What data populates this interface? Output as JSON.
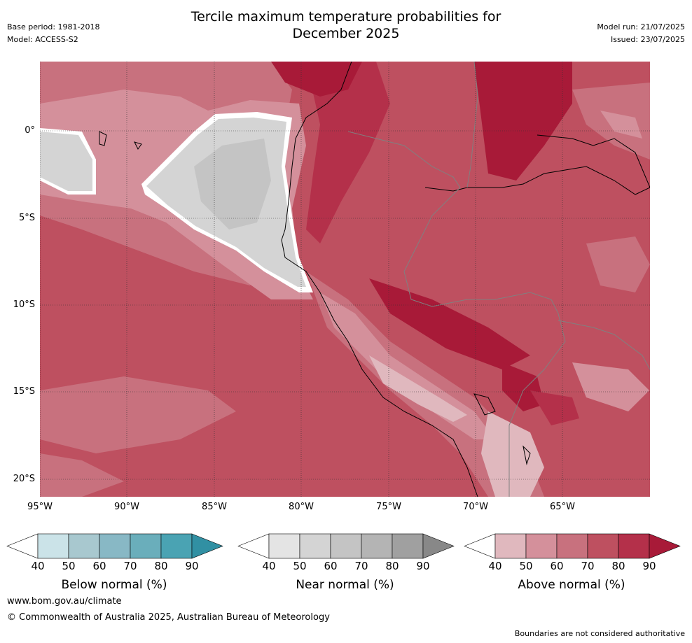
{
  "title": {
    "line1": "Tercile maximum temperature probabilities for",
    "line2": "December 2025"
  },
  "meta_left": {
    "base_period": "Base period: 1981-2018",
    "model": "Model: ACCESS-S2"
  },
  "meta_right": {
    "model_run": "Model run: 21/07/2025",
    "issued": "Issued: 23/07/2025"
  },
  "axes": {
    "y_labels": [
      "0°",
      "5°S",
      "10°S",
      "15°S",
      "20°S"
    ],
    "x_labels": [
      "95°W",
      "90°W",
      "85°W",
      "80°W",
      "75°W",
      "70°W",
      "65°W"
    ]
  },
  "legend": {
    "ticks": [
      "40",
      "50",
      "60",
      "70",
      "80",
      "90"
    ],
    "below": {
      "title": "Below normal (%)",
      "colors": [
        "#ffffff",
        "#cbe3e8",
        "#a8c8cf",
        "#88b8c5",
        "#6aaebb",
        "#4aa3b3",
        "#3190a3"
      ]
    },
    "near": {
      "title": "Near normal (%)",
      "colors": [
        "#ffffff",
        "#e4e4e4",
        "#d4d4d4",
        "#c4c4c4",
        "#b4b4b4",
        "#a0a0a0",
        "#888888"
      ]
    },
    "above": {
      "title": "Above normal (%)",
      "colors": [
        "#ffffff",
        "#e0b8be",
        "#d4909b",
        "#c8717e",
        "#be5060",
        "#b4304a",
        "#a81a38"
      ]
    }
  },
  "footer": {
    "url": "www.bom.gov.au/climate",
    "copyright": "© Commonwealth of Australia 2025, Australian Bureau of Meteorology",
    "note": "Boundaries are not considered authoritative"
  }
}
